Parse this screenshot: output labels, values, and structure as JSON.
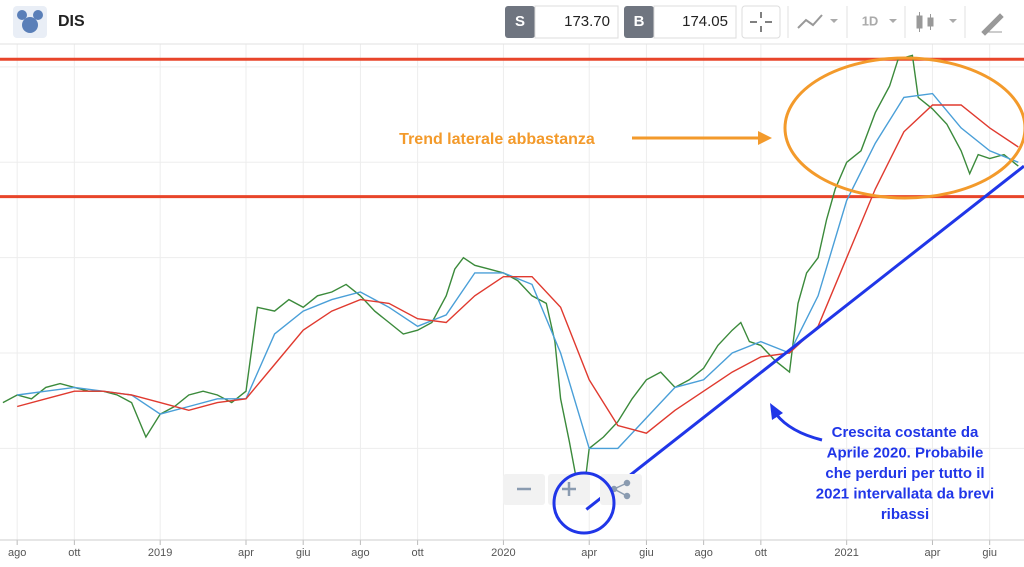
{
  "header": {
    "symbol": "DIS",
    "sell_label": "S",
    "sell_price": "173.70",
    "buy_label": "B",
    "buy_price": "174.05",
    "timeframe": "1D"
  },
  "chart_data": {
    "type": "line",
    "xlim": [
      6.4,
      42.2
    ],
    "ylim": [
      76,
      206
    ],
    "xticks": [
      {
        "value": 7,
        "label": "ago"
      },
      {
        "value": 9,
        "label": "ott"
      },
      {
        "value": 12,
        "label": "2019"
      },
      {
        "value": 15,
        "label": "apr"
      },
      {
        "value": 17,
        "label": "giu"
      },
      {
        "value": 19,
        "label": "ago"
      },
      {
        "value": 21,
        "label": "ott"
      },
      {
        "value": 24,
        "label": "2020"
      },
      {
        "value": 27,
        "label": "apr"
      },
      {
        "value": 29,
        "label": "giu"
      },
      {
        "value": 31,
        "label": "ago"
      },
      {
        "value": 33,
        "label": "ott"
      },
      {
        "value": 36,
        "label": "2021"
      },
      {
        "value": 39,
        "label": "apr"
      },
      {
        "value": 41,
        "label": "giu"
      }
    ],
    "ygrid": [
      100,
      125,
      150,
      175,
      200
    ],
    "grid": true,
    "series": [
      {
        "color": "#3b8a3b",
        "x": [
          6.5,
          7,
          7.5,
          8,
          8.5,
          9,
          9.5,
          10,
          10.5,
          11,
          11.5,
          12,
          12.5,
          13,
          13.5,
          14,
          14.5,
          15,
          15.4,
          16,
          16.5,
          17,
          17.5,
          18,
          18.5,
          19,
          19.5,
          20,
          20.5,
          21,
          21.5,
          22,
          22.3,
          22.6,
          23,
          23.5,
          24,
          24.5,
          25,
          25.5,
          25.8,
          26,
          26.3,
          26.6,
          26.9,
          27,
          27.5,
          28,
          28.5,
          29,
          29.5,
          30,
          30.5,
          31,
          31.5,
          32,
          32.3,
          32.6,
          33,
          33.5,
          34,
          34.3,
          34.6,
          35,
          35.3,
          35.6,
          36,
          36.5,
          37,
          37.5,
          37.8,
          38.3,
          38.5,
          39,
          39.5,
          40,
          40.3,
          40.6,
          41,
          41.5,
          42
        ],
        "values": [
          112,
          114,
          113,
          116,
          117,
          116,
          115,
          115,
          114,
          112,
          103,
          109,
          111,
          114,
          115,
          114,
          112,
          115,
          137,
          136,
          139,
          137,
          140,
          141,
          143,
          140,
          136,
          133,
          130,
          131,
          133,
          140,
          147,
          150,
          148,
          147,
          146,
          144,
          140,
          138,
          128,
          113,
          102,
          90,
          94,
          100,
          103,
          107,
          113,
          118,
          120,
          116,
          118,
          121,
          127,
          131,
          133,
          128,
          127,
          123,
          120,
          138,
          146,
          150,
          160,
          168,
          175,
          178,
          188,
          195,
          202,
          203,
          192,
          189,
          185,
          178,
          172,
          177,
          176,
          177,
          174
        ]
      },
      {
        "color": "#4a9fd8",
        "x": [
          7,
          8,
          9,
          10,
          11,
          12,
          13,
          14,
          15,
          16,
          17,
          18,
          19,
          20,
          21,
          22,
          23,
          24,
          25,
          26,
          27,
          28,
          29,
          30,
          31,
          32,
          33,
          34,
          35,
          36,
          37,
          38,
          39,
          40,
          41,
          42
        ],
        "values": [
          114,
          115,
          116,
          115,
          114,
          109,
          111,
          113,
          113,
          130,
          136,
          139,
          141,
          137,
          132,
          135,
          146,
          146,
          143,
          125,
          100,
          100,
          108,
          116,
          118,
          125,
          128,
          125,
          140,
          165,
          180,
          192,
          193,
          184,
          178,
          175
        ]
      },
      {
        "color": "#e03a2f",
        "x": [
          7,
          8,
          9,
          10,
          11,
          12,
          13,
          14,
          15,
          16,
          17,
          18,
          19,
          20,
          21,
          22,
          23,
          24,
          25,
          26,
          27,
          28,
          29,
          30,
          31,
          32,
          33,
          34,
          35,
          36,
          37,
          38,
          39,
          40,
          41,
          42
        ],
        "values": [
          111,
          113,
          115,
          115,
          114,
          112,
          110,
          112,
          113,
          122,
          131,
          136,
          139,
          138,
          134,
          133,
          140,
          145,
          145,
          137,
          118,
          106,
          104,
          110,
          115,
          120,
          124,
          125,
          132,
          150,
          168,
          183,
          190,
          190,
          184,
          179
        ]
      }
    ],
    "levels": [
      {
        "value": 202,
        "color": "#e8452a"
      },
      {
        "value": 166,
        "color": "#e8452a"
      }
    ],
    "trendline": {
      "x": [
        26.9,
        42.2
      ],
      "values": [
        84,
        174
      ],
      "color": "#2036e8"
    },
    "annotations": [
      {
        "text": "Trend laterale abbastanza",
        "color": "#f39a2b"
      },
      {
        "lines": [
          "Crescita costante da",
          "Aprile 2020. Probabile",
          "che perduri per tutto il",
          "2021 intervallata da brevi",
          "ribassi"
        ],
        "color": "#2036e8"
      }
    ]
  }
}
